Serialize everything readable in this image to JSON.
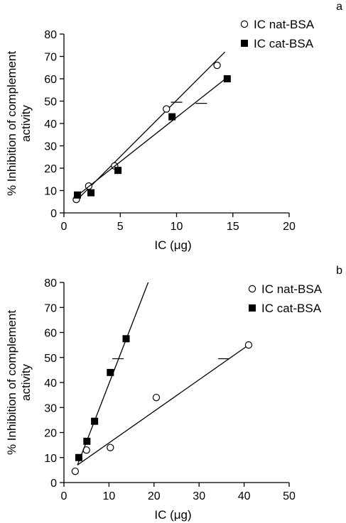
{
  "chart_data": [
    {
      "type": "scatter",
      "panel_label": "a",
      "xlabel": "IC (μg)",
      "ylabel_lines": [
        "% Inhibition of complement",
        "activity"
      ],
      "xlim": [
        0,
        20
      ],
      "ylim": [
        0,
        80
      ],
      "xticks": [
        0,
        5,
        10,
        15,
        20
      ],
      "yticks": [
        0,
        10,
        20,
        30,
        40,
        50,
        60,
        70,
        80
      ],
      "legend_position": "top-right",
      "grid": false,
      "series": [
        {
          "name": "IC nat-BSA",
          "marker": "open-circle",
          "points": [
            [
              1.1,
              6
            ],
            [
              2.2,
              12
            ],
            [
              4.5,
              21
            ],
            [
              9.1,
              46.5
            ],
            [
              13.6,
              66
            ]
          ],
          "fit_line": [
            [
              1.0,
              5
            ],
            [
              14.3,
              72
            ]
          ],
          "half_max_mark": [
            10,
            49.5
          ]
        },
        {
          "name": "IC cat-BSA",
          "marker": "filled-square",
          "points": [
            [
              1.2,
              8
            ],
            [
              2.4,
              9
            ],
            [
              4.8,
              19
            ],
            [
              9.6,
              43
            ],
            [
              14.5,
              60
            ]
          ],
          "fit_line": [
            [
              1.0,
              7
            ],
            [
              14.6,
              61
            ]
          ],
          "half_max_mark": [
            12.2,
            49
          ]
        }
      ]
    },
    {
      "type": "scatter",
      "panel_label": "b",
      "xlabel": "IC (μg)",
      "ylabel_lines": [
        "% Inhibition of complement",
        "activity"
      ],
      "xlim": [
        0,
        50
      ],
      "ylim": [
        0,
        80
      ],
      "xticks": [
        0,
        10,
        20,
        30,
        40,
        50
      ],
      "yticks": [
        0,
        10,
        20,
        30,
        40,
        50,
        60,
        70,
        80
      ],
      "legend_position": "top-right",
      "grid": false,
      "series": [
        {
          "name": "IC nat-BSA",
          "marker": "open-circle",
          "points": [
            [
              2.5,
              4.5
            ],
            [
              5,
              13
            ],
            [
              10.3,
              14
            ],
            [
              20.5,
              34
            ],
            [
              41,
              55
            ]
          ],
          "fit_line": [
            [
              3.0,
              7
            ],
            [
              41,
              55
            ]
          ],
          "half_max_mark": [
            35.5,
            49.5
          ]
        },
        {
          "name": "IC cat-BSA",
          "marker": "filled-square",
          "points": [
            [
              3.3,
              10
            ],
            [
              5.1,
              16.5
            ],
            [
              6.8,
              24.5
            ],
            [
              10.3,
              44
            ],
            [
              13.8,
              57.5
            ]
          ],
          "fit_line": [
            [
              3.0,
              7
            ],
            [
              18.7,
              80
            ]
          ],
          "half_max_mark": [
            12,
            49.5
          ]
        }
      ]
    }
  ]
}
